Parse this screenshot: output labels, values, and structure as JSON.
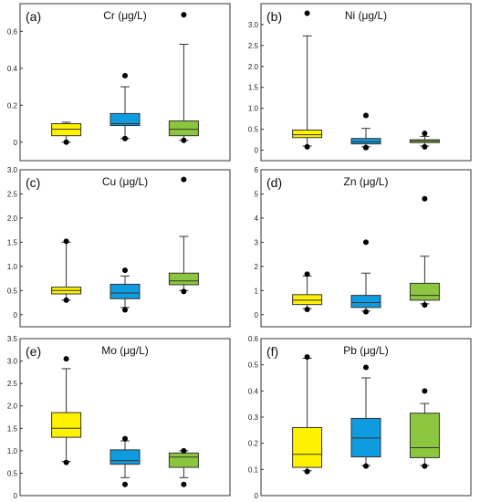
{
  "chart_data": [
    {
      "type": "box",
      "tag": "(a)",
      "title": "Cr (μg/L)",
      "ylim": [
        -0.1,
        0.75
      ],
      "yticks": [
        0,
        0.2,
        0.4,
        0.6
      ],
      "ytick_labels": [
        "0",
        "0.2",
        "0.4",
        "0.6"
      ],
      "series": [
        {
          "color": "#FFF200",
          "whisker_low": 0.0,
          "q1": 0.035,
          "median": 0.07,
          "q3": 0.1,
          "whisker_high": 0.108,
          "outliers": [
            0.0
          ]
        },
        {
          "color": "#0F9BDF",
          "whisker_low": 0.02,
          "q1": 0.09,
          "median": 0.1,
          "q3": 0.155,
          "whisker_high": 0.3,
          "outliers": [
            0.02,
            0.36
          ]
        },
        {
          "color": "#8CC63F",
          "whisker_low": 0.01,
          "q1": 0.035,
          "median": 0.07,
          "q3": 0.115,
          "whisker_high": 0.53,
          "outliers": [
            0.01,
            0.69
          ]
        }
      ]
    },
    {
      "type": "box",
      "tag": "(b)",
      "title": "Ni (μg/L)",
      "ylim": [
        -0.25,
        3.5
      ],
      "yticks": [
        0,
        0.5,
        1.0,
        1.5,
        2.0,
        2.5,
        3.0
      ],
      "ytick_labels": [
        "0",
        "0.5",
        "1.0",
        "1.5",
        "2.0",
        "2.5",
        "3.0"
      ],
      "series": [
        {
          "color": "#FFF200",
          "whisker_low": 0.1,
          "q1": 0.3,
          "median": 0.37,
          "q3": 0.48,
          "whisker_high": 2.73,
          "outliers": [
            0.08,
            3.27
          ]
        },
        {
          "color": "#0F9BDF",
          "whisker_low": 0.08,
          "q1": 0.15,
          "median": 0.2,
          "q3": 0.28,
          "whisker_high": 0.52,
          "outliers": [
            0.06,
            0.83
          ]
        },
        {
          "color": "#8CC63F",
          "whisker_low": 0.1,
          "q1": 0.18,
          "median": 0.22,
          "q3": 0.25,
          "whisker_high": 0.33,
          "outliers": [
            0.08,
            0.4
          ]
        }
      ]
    },
    {
      "type": "box",
      "tag": "(c)",
      "title": "Cu (μg/L)",
      "ylim": [
        -0.25,
        3.0
      ],
      "yticks": [
        0,
        0.5,
        1.0,
        1.5,
        2.0,
        2.5,
        3.0
      ],
      "ytick_labels": [
        "0",
        "0.5",
        "1.0",
        "1.5",
        "2.0",
        "2.5",
        "3.0"
      ],
      "series": [
        {
          "color": "#FFF200",
          "whisker_low": 0.3,
          "q1": 0.43,
          "median": 0.5,
          "q3": 0.57,
          "whisker_high": 1.5,
          "outliers": [
            0.3,
            1.52
          ]
        },
        {
          "color": "#0F9BDF",
          "whisker_low": 0.15,
          "q1": 0.33,
          "median": 0.45,
          "q3": 0.63,
          "whisker_high": 0.8,
          "outliers": [
            0.1,
            0.92
          ]
        },
        {
          "color": "#8CC63F",
          "whisker_low": 0.5,
          "q1": 0.62,
          "median": 0.7,
          "q3": 0.86,
          "whisker_high": 1.62,
          "outliers": [
            0.48,
            2.8
          ]
        }
      ]
    },
    {
      "type": "box",
      "tag": "(d)",
      "title": "Zn (μg/L)",
      "ylim": [
        -0.5,
        6.0
      ],
      "yticks": [
        0,
        1,
        2,
        3,
        4,
        5,
        6
      ],
      "ytick_labels": [
        "0",
        "1",
        "2",
        "3",
        "4",
        "5",
        "6"
      ],
      "series": [
        {
          "color": "#FFF200",
          "whisker_low": 0.25,
          "q1": 0.42,
          "median": 0.6,
          "q3": 0.83,
          "whisker_high": 1.6,
          "outliers": [
            0.22,
            1.68
          ]
        },
        {
          "color": "#0F9BDF",
          "whisker_low": 0.15,
          "q1": 0.3,
          "median": 0.5,
          "q3": 0.8,
          "whisker_high": 1.72,
          "outliers": [
            0.12,
            3.0
          ]
        },
        {
          "color": "#8CC63F",
          "whisker_low": 0.45,
          "q1": 0.6,
          "median": 0.8,
          "q3": 1.3,
          "whisker_high": 2.42,
          "outliers": [
            0.4,
            4.8
          ]
        }
      ]
    },
    {
      "type": "box",
      "tag": "(e)",
      "title": "Mo (μg/L)",
      "ylim": [
        0.0,
        3.5
      ],
      "yticks": [
        0,
        0.5,
        1.0,
        1.5,
        2.0,
        2.5,
        3.0,
        3.5
      ],
      "ytick_labels": [
        "0",
        "0.5",
        "1.0",
        "1.5",
        "2.0",
        "2.5",
        "3.0",
        "3.5"
      ],
      "series": [
        {
          "color": "#FFF200",
          "whisker_low": 0.76,
          "q1": 1.3,
          "median": 1.5,
          "q3": 1.85,
          "whisker_high": 2.83,
          "outliers": [
            0.74,
            3.05
          ]
        },
        {
          "color": "#0F9BDF",
          "whisker_low": 0.4,
          "q1": 0.7,
          "median": 0.78,
          "q3": 1.02,
          "whisker_high": 1.22,
          "outliers": [
            0.25,
            1.27
          ]
        },
        {
          "color": "#8CC63F",
          "whisker_low": 0.4,
          "q1": 0.63,
          "median": 0.86,
          "q3": 0.95,
          "whisker_high": 1.0,
          "outliers": [
            0.25,
            1.0
          ]
        }
      ]
    },
    {
      "type": "box",
      "tag": "(f)",
      "title": "Pb (μg/L)",
      "ylim": [
        0.0,
        0.6
      ],
      "yticks": [
        0,
        0.1,
        0.2,
        0.3,
        0.4,
        0.5,
        0.6
      ],
      "ytick_labels": [
        "0",
        "0.1",
        "0.2",
        "0.3",
        "0.4",
        "0.5",
        "0.6"
      ],
      "series": [
        {
          "color": "#FFF200",
          "whisker_low": 0.095,
          "q1": 0.108,
          "median": 0.158,
          "q3": 0.26,
          "whisker_high": 0.525,
          "outliers": [
            0.092,
            0.53
          ]
        },
        {
          "color": "#0F9BDF",
          "whisker_low": 0.115,
          "q1": 0.148,
          "median": 0.22,
          "q3": 0.295,
          "whisker_high": 0.45,
          "outliers": [
            0.113,
            0.49
          ]
        },
        {
          "color": "#8CC63F",
          "whisker_low": 0.115,
          "q1": 0.145,
          "median": 0.183,
          "q3": 0.315,
          "whisker_high": 0.352,
          "outliers": [
            0.113,
            0.4
          ]
        }
      ]
    }
  ]
}
